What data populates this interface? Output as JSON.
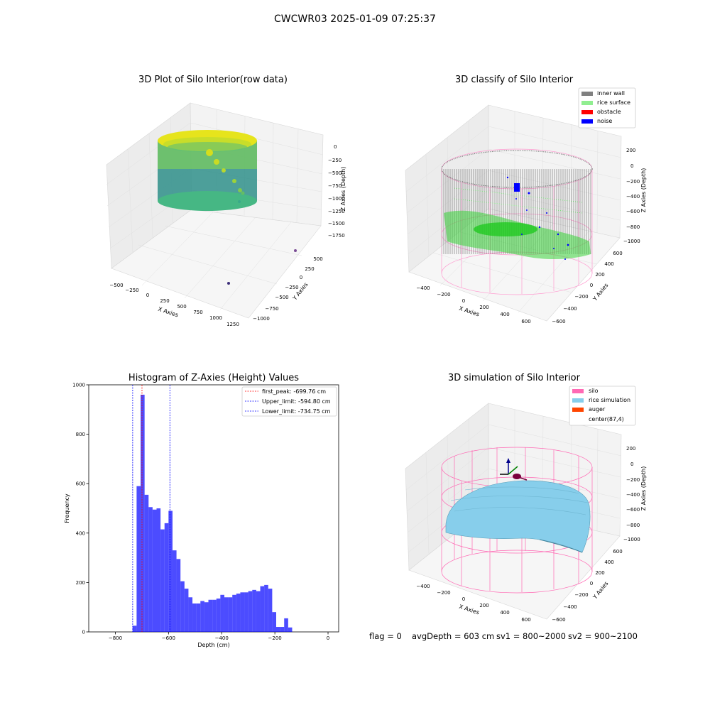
{
  "suptitle": "CWCWR03 2025-01-09 07:25:37",
  "panels": {
    "raw": {
      "title": "3D Plot of Silo Interior(row data)",
      "xlabel": "X Axies",
      "ylabel": "Y Axies",
      "zlabel": "Z Axies (Depth)",
      "xticks": [
        "−500",
        "−250",
        "0",
        "250",
        "500",
        "750",
        "1000",
        "1250"
      ],
      "yticks": [
        "−1000",
        "−750",
        "−500",
        "−250",
        "0",
        "250",
        "500"
      ],
      "zticks": [
        "0",
        "−250",
        "−500",
        "−750",
        "−1000",
        "−1250",
        "−1500",
        "−1750"
      ]
    },
    "classify": {
      "title": "3D classify of Silo Interior",
      "xlabel": "X Axies",
      "ylabel": "Y Axies",
      "zlabel": "Z Axies (Depth)",
      "xticks": [
        "−400",
        "−200",
        "0",
        "200",
        "400",
        "600"
      ],
      "yticks": [
        "−600",
        "−400",
        "−200",
        "0",
        "200",
        "400",
        "600"
      ],
      "zticks": [
        "200",
        "0",
        "−200",
        "−400",
        "−600",
        "−800",
        "−1000"
      ],
      "legend": [
        {
          "label": "inner wall",
          "color": "#808080"
        },
        {
          "label": "rice surface",
          "color": "#90ee90"
        },
        {
          "label": "obstacle",
          "color": "#ff0000"
        },
        {
          "label": "noise",
          "color": "#0000ff"
        }
      ]
    },
    "simulation": {
      "title": "3D simulation of Silo Interior",
      "xlabel": "X Axies",
      "ylabel": "Y Axies",
      "zlabel": "Z Axies (Depth)",
      "xticks": [
        "−400",
        "−200",
        "0",
        "200",
        "400",
        "600"
      ],
      "yticks": [
        "−600",
        "−400",
        "−200",
        "0",
        "200",
        "400",
        "600"
      ],
      "zticks": [
        "200",
        "0",
        "−200",
        "−400",
        "−600",
        "−800",
        "−1000"
      ],
      "legend": [
        {
          "label": "silo",
          "color": "#ff69b4"
        },
        {
          "label": "rice simulation",
          "color": "#87ceeb"
        },
        {
          "label": "auger",
          "color": "#ff4500"
        },
        {
          "label": "center(87,4)",
          "color": ""
        }
      ]
    }
  },
  "status": {
    "flag": "flag = 0",
    "avgDepth": "avgDepth = 603 cm",
    "sv1": "sv1 = 800~2000",
    "sv2": "sv2 = 900~2100"
  },
  "chart_data": {
    "type": "bar",
    "title": "Histogram of Z-Axies (Height) Values",
    "xlabel": "Depth (cm)",
    "ylabel": "Frequency",
    "xlim": [
      -900,
      40
    ],
    "ylim": [
      0,
      1000
    ],
    "xticks": [
      -800,
      -600,
      -400,
      -200,
      0
    ],
    "yticks": [
      0,
      200,
      400,
      600,
      800,
      1000
    ],
    "bar_color": "#0000ff",
    "bin_edges": [
      -735,
      -720,
      -705,
      -690,
      -675,
      -660,
      -645,
      -630,
      -615,
      -600,
      -585,
      -570,
      -555,
      -540,
      -525,
      -510,
      -495,
      -480,
      -465,
      -450,
      -435,
      -420,
      -405,
      -390,
      -375,
      -360,
      -345,
      -330,
      -315,
      -300,
      -285,
      -270,
      -255,
      -240,
      -225,
      -210,
      -195,
      -180,
      -165,
      -150,
      -135,
      -120,
      -105,
      -90,
      -75,
      -60,
      -45,
      -30,
      -15,
      0
    ],
    "counts": [
      25,
      590,
      960,
      555,
      505,
      495,
      500,
      415,
      440,
      490,
      330,
      295,
      205,
      175,
      140,
      115,
      115,
      125,
      120,
      130,
      130,
      135,
      150,
      140,
      140,
      150,
      155,
      160,
      160,
      165,
      170,
      165,
      185,
      190,
      175,
      80,
      20,
      20,
      55,
      18,
      0,
      0,
      0,
      0,
      0,
      0,
      0,
      0,
      0
    ],
    "lines": [
      {
        "label": "first_peak: -699.76 cm",
        "x": -699.76,
        "color": "#ff0000"
      },
      {
        "label": "Upper_limit: -594.80 cm",
        "x": -594.8,
        "color": "#0000ff"
      },
      {
        "label": "Lower_limit: -734.75 cm",
        "x": -734.75,
        "color": "#0000ff"
      }
    ]
  }
}
